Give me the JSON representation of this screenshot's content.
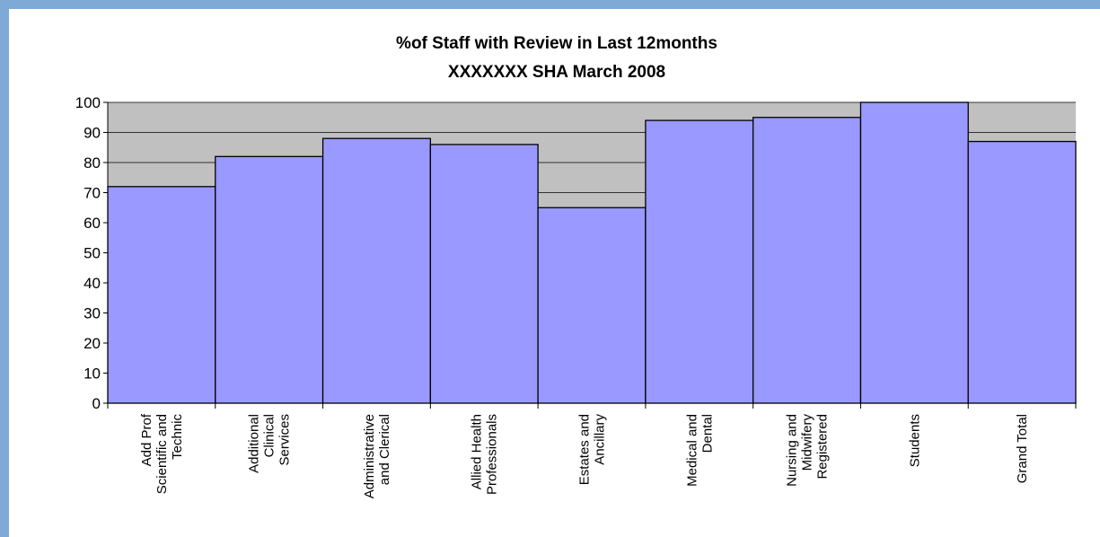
{
  "chart_data": {
    "type": "bar",
    "title": "%of Staff with Review in Last 12months",
    "subtitle": "XXXXXXX SHA March 2008",
    "categories": [
      "Add Prof Scientific and Technic",
      "Additional Clinical Services",
      "Administrative and Clerical",
      "Allied Health Professionals",
      "Estates and Ancillary",
      "Medical and Dental",
      "Nursing and Midwifery Registered",
      "Students",
      "Grand Total"
    ],
    "values": [
      72,
      82,
      88,
      86,
      65,
      94,
      95,
      100,
      87
    ],
    "color": "#9999ff",
    "ylim": [
      0,
      100
    ],
    "yticks": [
      0,
      10,
      20,
      30,
      40,
      50,
      60,
      70,
      80,
      90,
      100
    ],
    "grid": true
  }
}
